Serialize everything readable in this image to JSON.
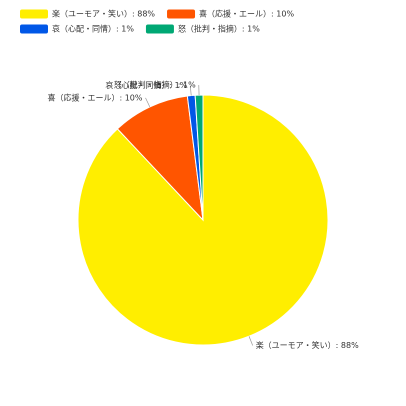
{
  "chart_data": {
    "type": "pie",
    "categories": [
      "楽（ユーモア・笑い）: 88%",
      "喜（応援・エール）: 10%",
      "哀（心配・同情）: 1%",
      "怒（批判・指摘）: 1%"
    ],
    "values": [
      88,
      10,
      1,
      1
    ],
    "colors": [
      "#ffee00",
      "#ff5500",
      "#0057e7",
      "#00a874"
    ],
    "legend": "top"
  }
}
